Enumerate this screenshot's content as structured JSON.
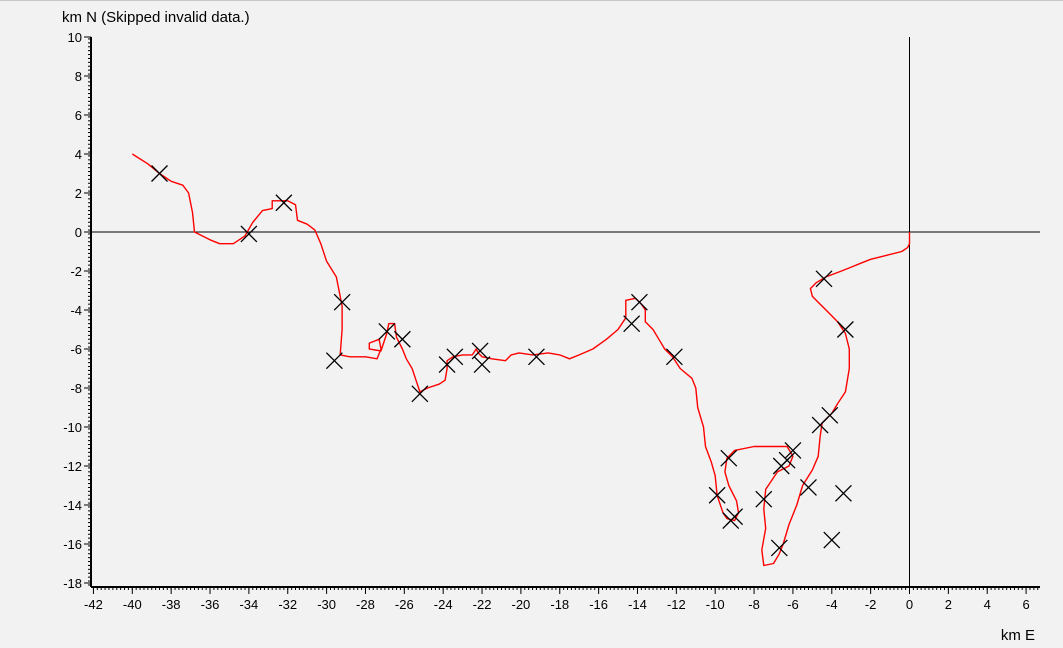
{
  "chart_data": {
    "type": "line",
    "title": "",
    "ylabel": "km N (Skipped invalid data.)",
    "xlabel": "km E",
    "xlim": [
      -42,
      7
    ],
    "ylim": [
      -18.5,
      10
    ],
    "x_ticks": [
      -42,
      -40,
      -38,
      -36,
      -34,
      -32,
      -30,
      -28,
      -26,
      -24,
      -22,
      -20,
      -18,
      -16,
      -14,
      -12,
      -10,
      -8,
      -6,
      -4,
      -2,
      0,
      2,
      4,
      6
    ],
    "y_ticks": [
      10,
      8,
      6,
      4,
      2,
      0,
      -2,
      -4,
      -6,
      -8,
      -10,
      -12,
      -14,
      -16,
      -18
    ],
    "grid": false,
    "origin_lines": true,
    "colors": {
      "track": "#ff0000",
      "markers": "#000000",
      "axes": "#000000",
      "background": "#f2f2f2"
    },
    "track": [
      [
        -40.0,
        4.0
      ],
      [
        -39.2,
        3.5
      ],
      [
        -38.6,
        3.0
      ],
      [
        -38.0,
        2.6
      ],
      [
        -37.4,
        2.4
      ],
      [
        -37.1,
        2.0
      ],
      [
        -36.9,
        1.0
      ],
      [
        -36.8,
        0.0
      ],
      [
        -36.0,
        -0.4
      ],
      [
        -35.5,
        -0.6
      ],
      [
        -34.8,
        -0.6
      ],
      [
        -34.2,
        -0.2
      ],
      [
        -33.8,
        0.5
      ],
      [
        -33.3,
        1.1
      ],
      [
        -32.8,
        1.2
      ],
      [
        -32.8,
        1.6
      ],
      [
        -32.0,
        1.6
      ],
      [
        -31.6,
        1.4
      ],
      [
        -31.5,
        0.6
      ],
      [
        -31.0,
        0.4
      ],
      [
        -30.6,
        0.1
      ],
      [
        -30.3,
        -0.6
      ],
      [
        -30.0,
        -1.5
      ],
      [
        -29.5,
        -2.3
      ],
      [
        -29.3,
        -3.3
      ],
      [
        -29.2,
        -3.8
      ],
      [
        -29.2,
        -5.0
      ],
      [
        -29.3,
        -6.3
      ],
      [
        -28.8,
        -6.4
      ],
      [
        -28.0,
        -6.4
      ],
      [
        -27.4,
        -6.5
      ],
      [
        -27.2,
        -6.0
      ],
      [
        -27.3,
        -5.5
      ],
      [
        -27.8,
        -5.7
      ],
      [
        -27.8,
        -6.0
      ],
      [
        -27.2,
        -6.1
      ],
      [
        -26.9,
        -5.2
      ],
      [
        -26.8,
        -4.7
      ],
      [
        -26.5,
        -4.7
      ],
      [
        -26.4,
        -5.4
      ],
      [
        -26.1,
        -6.0
      ],
      [
        -25.9,
        -6.5
      ],
      [
        -25.6,
        -7.0
      ],
      [
        -25.4,
        -7.6
      ],
      [
        -25.2,
        -8.2
      ],
      [
        -24.8,
        -8.0
      ],
      [
        -24.2,
        -7.8
      ],
      [
        -23.9,
        -7.6
      ],
      [
        -23.8,
        -7.0
      ],
      [
        -23.8,
        -6.6
      ],
      [
        -23.5,
        -6.4
      ],
      [
        -23.0,
        -6.3
      ],
      [
        -22.5,
        -6.3
      ],
      [
        -22.3,
        -6.0
      ],
      [
        -22.2,
        -6.2
      ],
      [
        -22.0,
        -6.4
      ],
      [
        -21.5,
        -6.5
      ],
      [
        -20.8,
        -6.6
      ],
      [
        -20.5,
        -6.3
      ],
      [
        -20.1,
        -6.2
      ],
      [
        -19.4,
        -6.3
      ],
      [
        -18.6,
        -6.2
      ],
      [
        -18.0,
        -6.3
      ],
      [
        -17.5,
        -6.5
      ],
      [
        -17.0,
        -6.3
      ],
      [
        -16.3,
        -6.0
      ],
      [
        -15.6,
        -5.5
      ],
      [
        -15.0,
        -5.0
      ],
      [
        -14.6,
        -4.4
      ],
      [
        -14.6,
        -3.5
      ],
      [
        -14.1,
        -3.4
      ],
      [
        -13.8,
        -3.7
      ],
      [
        -13.6,
        -4.0
      ],
      [
        -13.6,
        -4.6
      ],
      [
        -13.2,
        -5.0
      ],
      [
        -12.9,
        -5.5
      ],
      [
        -12.6,
        -6.0
      ],
      [
        -12.2,
        -6.4
      ],
      [
        -11.8,
        -7.0
      ],
      [
        -11.2,
        -7.5
      ],
      [
        -11.0,
        -8.0
      ],
      [
        -10.9,
        -9.0
      ],
      [
        -10.6,
        -10.0
      ],
      [
        -10.5,
        -11.0
      ],
      [
        -10.2,
        -11.8
      ],
      [
        -10.0,
        -12.5
      ],
      [
        -9.9,
        -13.5
      ],
      [
        -9.6,
        -14.4
      ],
      [
        -9.4,
        -14.7
      ],
      [
        -9.0,
        -14.8
      ],
      [
        -8.8,
        -14.4
      ],
      [
        -8.9,
        -13.8
      ],
      [
        -9.3,
        -13.0
      ],
      [
        -9.5,
        -12.3
      ],
      [
        -9.4,
        -11.6
      ],
      [
        -9.0,
        -11.2
      ],
      [
        -8.0,
        -11.0
      ],
      [
        -7.0,
        -11.0
      ],
      [
        -6.3,
        -11.0
      ],
      [
        -6.0,
        -11.5
      ],
      [
        -6.2,
        -12.0
      ],
      [
        -6.8,
        -12.3
      ],
      [
        -7.4,
        -13.2
      ],
      [
        -7.5,
        -14.2
      ],
      [
        -7.4,
        -15.2
      ],
      [
        -7.6,
        -16.3
      ],
      [
        -7.5,
        -17.1
      ],
      [
        -7.0,
        -17.0
      ],
      [
        -6.7,
        -16.5
      ],
      [
        -6.5,
        -16.0
      ],
      [
        -6.2,
        -15.0
      ],
      [
        -5.8,
        -14.0
      ],
      [
        -5.5,
        -13.0
      ],
      [
        -5.0,
        -12.2
      ],
      [
        -4.7,
        -11.5
      ],
      [
        -4.6,
        -10.5
      ],
      [
        -4.5,
        -9.8
      ],
      [
        -4.2,
        -9.5
      ],
      [
        -4.0,
        -9.3
      ],
      [
        -3.7,
        -8.8
      ],
      [
        -3.3,
        -8.2
      ],
      [
        -3.1,
        -7.0
      ],
      [
        -3.1,
        -6.0
      ],
      [
        -3.3,
        -5.2
      ],
      [
        -3.7,
        -4.6
      ],
      [
        -4.3,
        -4.0
      ],
      [
        -4.7,
        -3.6
      ],
      [
        -5.0,
        -3.3
      ],
      [
        -5.1,
        -2.9
      ],
      [
        -4.8,
        -2.6
      ],
      [
        -4.3,
        -2.3
      ],
      [
        -3.5,
        -2.0
      ],
      [
        -3.0,
        -1.8
      ],
      [
        -2.5,
        -1.6
      ],
      [
        -2.0,
        -1.4
      ],
      [
        -1.2,
        -1.2
      ],
      [
        -0.4,
        -1.0
      ],
      [
        -0.1,
        -0.8
      ],
      [
        0.0,
        -0.6
      ],
      [
        0.0,
        0.0
      ]
    ],
    "markers": [
      [
        -38.6,
        3.0
      ],
      [
        -34.0,
        -0.1
      ],
      [
        -32.2,
        1.5
      ],
      [
        -29.2,
        -3.6
      ],
      [
        -29.6,
        -6.6
      ],
      [
        -26.9,
        -5.1
      ],
      [
        -26.1,
        -5.5
      ],
      [
        -25.2,
        -8.3
      ],
      [
        -23.8,
        -6.8
      ],
      [
        -23.4,
        -6.4
      ],
      [
        -22.1,
        -6.1
      ],
      [
        -22.0,
        -6.8
      ],
      [
        -19.2,
        -6.4
      ],
      [
        -14.3,
        -4.7
      ],
      [
        -13.9,
        -3.6
      ],
      [
        -12.1,
        -6.4
      ],
      [
        -9.9,
        -13.5
      ],
      [
        -9.3,
        -11.6
      ],
      [
        -9.2,
        -14.8
      ],
      [
        -9.0,
        -14.6
      ],
      [
        -7.5,
        -13.7
      ],
      [
        -6.6,
        -12.0
      ],
      [
        -6.3,
        -11.7
      ],
      [
        -6.0,
        -11.2
      ],
      [
        -6.7,
        -16.2
      ],
      [
        -5.2,
        -13.1
      ],
      [
        -4.6,
        -9.9
      ],
      [
        -4.1,
        -9.4
      ],
      [
        -3.4,
        -13.4
      ],
      [
        -4.0,
        -15.8
      ],
      [
        -4.4,
        -2.4
      ],
      [
        -3.3,
        -5.0
      ]
    ]
  }
}
